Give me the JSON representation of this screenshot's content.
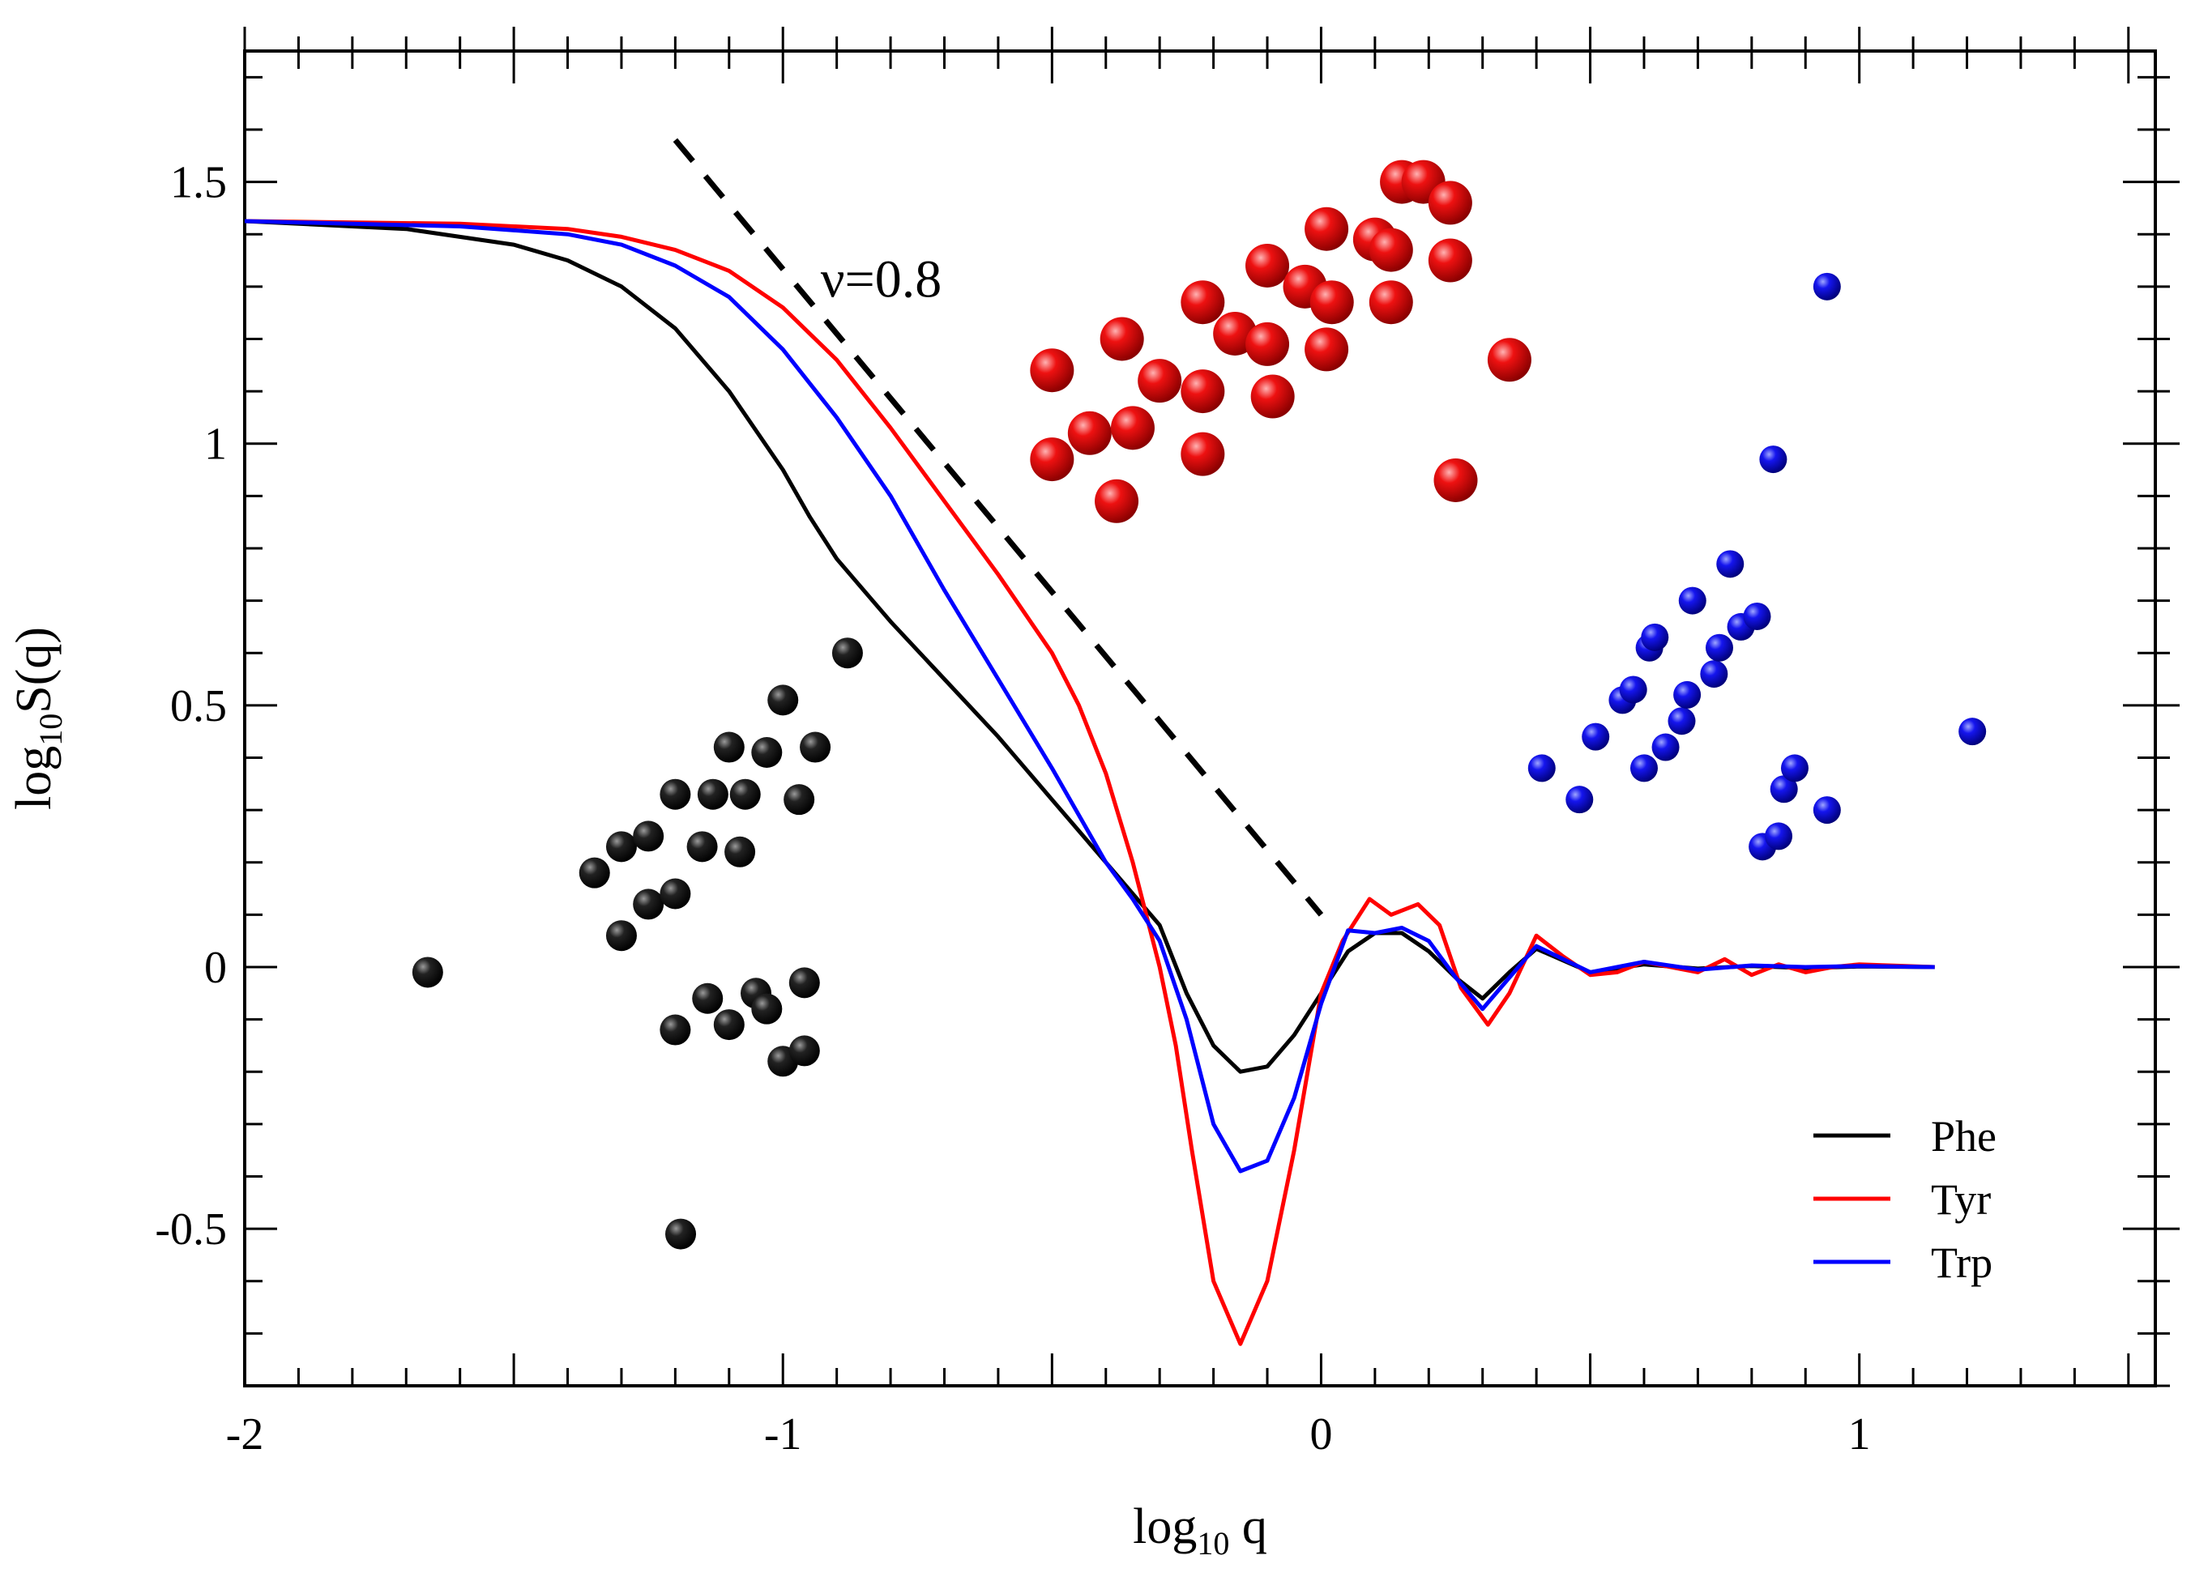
{
  "chart_data": {
    "type": "line",
    "title": "",
    "xlabel": {
      "base": "log",
      "sub": "10",
      "rest": " q"
    },
    "ylabel": {
      "base": "log",
      "sub": "10",
      "rest": "S(q)"
    },
    "xlim": [
      -2,
      1.55
    ],
    "ylim": [
      -0.8,
      1.75
    ],
    "x_ticks": [
      -2,
      -1,
      0,
      1
    ],
    "x_tick_labels": [
      "-2",
      "-1",
      "0",
      "1"
    ],
    "y_ticks": [
      -0.5,
      0,
      0.5,
      1,
      1.5
    ],
    "y_tick_labels": [
      "-0.5",
      "0",
      "0.5",
      "1",
      "1.5"
    ],
    "legend_position": "bottom-right",
    "series": [
      {
        "name": "Phe",
        "color": "#000000",
        "x": [
          -2,
          -1.7,
          -1.5,
          -1.4,
          -1.3,
          -1.2,
          -1.1,
          -1.0,
          -0.95,
          -0.9,
          -0.85,
          -0.8,
          -0.7,
          -0.6,
          -0.5,
          -0.4,
          -0.3,
          -0.25,
          -0.2,
          -0.15,
          -0.1,
          -0.05,
          0,
          0.05,
          0.1,
          0.15,
          0.2,
          0.25,
          0.3,
          0.35,
          0.4,
          0.5,
          0.6,
          0.7,
          0.8,
          0.9,
          1.0,
          1.14
        ],
        "values": [
          1.425,
          1.41,
          1.38,
          1.35,
          1.3,
          1.22,
          1.1,
          0.95,
          0.86,
          0.78,
          0.72,
          0.66,
          0.55,
          0.44,
          0.32,
          0.2,
          0.08,
          -0.05,
          -0.15,
          -0.2,
          -0.19,
          -0.13,
          -0.05,
          0.03,
          0.065,
          0.065,
          0.03,
          -0.02,
          -0.06,
          -0.01,
          0.035,
          -0.01,
          0.005,
          -0.003,
          0.002,
          -0.002,
          0.001,
          0.0
        ]
      },
      {
        "name": "Tyr",
        "color": "#ff0000",
        "x": [
          -2,
          -1.6,
          -1.4,
          -1.3,
          -1.2,
          -1.1,
          -1.0,
          -0.9,
          -0.8,
          -0.7,
          -0.6,
          -0.5,
          -0.45,
          -0.4,
          -0.35,
          -0.3,
          -0.27,
          -0.24,
          -0.2,
          -0.15,
          -0.1,
          -0.05,
          0,
          0.04,
          0.09,
          0.13,
          0.18,
          0.22,
          0.26,
          0.31,
          0.35,
          0.4,
          0.45,
          0.5,
          0.55,
          0.6,
          0.65,
          0.7,
          0.75,
          0.8,
          0.85,
          0.9,
          0.95,
          1.0,
          1.14
        ],
        "values": [
          1.425,
          1.42,
          1.41,
          1.395,
          1.37,
          1.33,
          1.26,
          1.16,
          1.03,
          0.89,
          0.75,
          0.6,
          0.5,
          0.37,
          0.2,
          0.0,
          -0.15,
          -0.35,
          -0.6,
          -0.72,
          -0.6,
          -0.35,
          -0.05,
          0.05,
          0.13,
          0.1,
          0.12,
          0.08,
          -0.04,
          -0.11,
          -0.05,
          0.06,
          0.02,
          -0.015,
          -0.01,
          0.01,
          0.0,
          -0.01,
          0.015,
          -0.015,
          0.005,
          -0.01,
          0.0,
          0.005,
          0.0
        ]
      },
      {
        "name": "Trp",
        "color": "#0000ff",
        "x": [
          -2,
          -1.6,
          -1.4,
          -1.3,
          -1.2,
          -1.1,
          -1.0,
          -0.9,
          -0.8,
          -0.7,
          -0.6,
          -0.5,
          -0.4,
          -0.35,
          -0.3,
          -0.25,
          -0.2,
          -0.15,
          -0.1,
          -0.05,
          0,
          0.05,
          0.1,
          0.15,
          0.2,
          0.25,
          0.3,
          0.35,
          0.4,
          0.5,
          0.6,
          0.7,
          0.8,
          0.9,
          1.0,
          1.14
        ],
        "values": [
          1.425,
          1.415,
          1.4,
          1.38,
          1.34,
          1.28,
          1.18,
          1.05,
          0.9,
          0.72,
          0.55,
          0.38,
          0.2,
          0.13,
          0.05,
          -0.1,
          -0.3,
          -0.39,
          -0.37,
          -0.25,
          -0.07,
          0.07,
          0.065,
          0.075,
          0.05,
          -0.02,
          -0.08,
          -0.02,
          0.04,
          -0.01,
          0.01,
          -0.005,
          0.003,
          0.0,
          0.002,
          0.0
        ]
      }
    ],
    "reference_line": {
      "label": "ν=0.8",
      "x": [
        -1.2,
        0.0
      ],
      "values": [
        1.58,
        0.1
      ],
      "style": "dashed",
      "color": "#000000"
    },
    "decorations": {
      "black_beads": {
        "color": "#111111",
        "points": [
          [
            -1.35,
            0.18
          ],
          [
            -1.3,
            0.23
          ],
          [
            -1.25,
            0.25
          ],
          [
            -1.2,
            0.33
          ],
          [
            -1.15,
            0.23
          ],
          [
            -1.13,
            0.33
          ],
          [
            -1.1,
            0.42
          ],
          [
            -1.07,
            0.33
          ],
          [
            -1.03,
            0.41
          ],
          [
            -1.0,
            0.51
          ],
          [
            -0.97,
            0.32
          ],
          [
            -0.94,
            0.42
          ],
          [
            -0.88,
            0.6
          ],
          [
            -1.3,
            0.06
          ],
          [
            -1.25,
            0.12
          ],
          [
            -1.2,
            0.14
          ],
          [
            -1.08,
            0.22
          ],
          [
            -1.2,
            -0.12
          ],
          [
            -1.14,
            -0.06
          ],
          [
            -1.1,
            -0.11
          ],
          [
            -1.05,
            -0.05
          ],
          [
            -1.03,
            -0.08
          ],
          [
            -1.0,
            -0.18
          ],
          [
            -0.96,
            -0.03
          ],
          [
            -0.96,
            -0.16
          ],
          [
            -1.66,
            -0.01
          ],
          [
            -1.19,
            -0.51
          ]
        ]
      },
      "red_beads": {
        "color": "#dd0000",
        "points": [
          [
            -0.5,
            1.14
          ],
          [
            -0.5,
            0.97
          ],
          [
            -0.43,
            1.02
          ],
          [
            -0.37,
            1.2
          ],
          [
            -0.35,
            1.03
          ],
          [
            -0.3,
            1.12
          ],
          [
            -0.38,
            0.89
          ],
          [
            -0.22,
            1.27
          ],
          [
            -0.22,
            1.1
          ],
          [
            -0.22,
            0.98
          ],
          [
            -0.16,
            1.21
          ],
          [
            -0.1,
            1.19
          ],
          [
            -0.1,
            1.34
          ],
          [
            -0.09,
            1.09
          ],
          [
            -0.03,
            1.3
          ],
          [
            0.01,
            1.41
          ],
          [
            0.02,
            1.27
          ],
          [
            0.01,
            1.18
          ],
          [
            0.1,
            1.39
          ],
          [
            0.13,
            1.37
          ],
          [
            0.13,
            1.27
          ],
          [
            0.15,
            1.5
          ],
          [
            0.19,
            1.5
          ],
          [
            0.24,
            1.46
          ],
          [
            0.24,
            1.35
          ],
          [
            0.25,
            0.93
          ],
          [
            0.35,
            1.16
          ]
        ]
      },
      "blue_beads": {
        "color": "#0000cc",
        "points": [
          [
            0.41,
            0.38
          ],
          [
            0.48,
            0.32
          ],
          [
            0.51,
            0.44
          ],
          [
            0.56,
            0.51
          ],
          [
            0.58,
            0.53
          ],
          [
            0.6,
            0.38
          ],
          [
            0.61,
            0.61
          ],
          [
            0.62,
            0.63
          ],
          [
            0.64,
            0.42
          ],
          [
            0.67,
            0.47
          ],
          [
            0.68,
            0.52
          ],
          [
            0.69,
            0.7
          ],
          [
            0.73,
            0.56
          ],
          [
            0.74,
            0.61
          ],
          [
            0.76,
            0.77
          ],
          [
            0.78,
            0.65
          ],
          [
            0.81,
            0.67
          ],
          [
            0.82,
            0.23
          ],
          [
            0.84,
            0.97
          ],
          [
            0.85,
            0.25
          ],
          [
            0.86,
            0.34
          ],
          [
            0.88,
            0.38
          ],
          [
            0.94,
            0.3
          ],
          [
            0.94,
            1.3
          ],
          [
            1.21,
            0.45
          ]
        ]
      }
    }
  }
}
